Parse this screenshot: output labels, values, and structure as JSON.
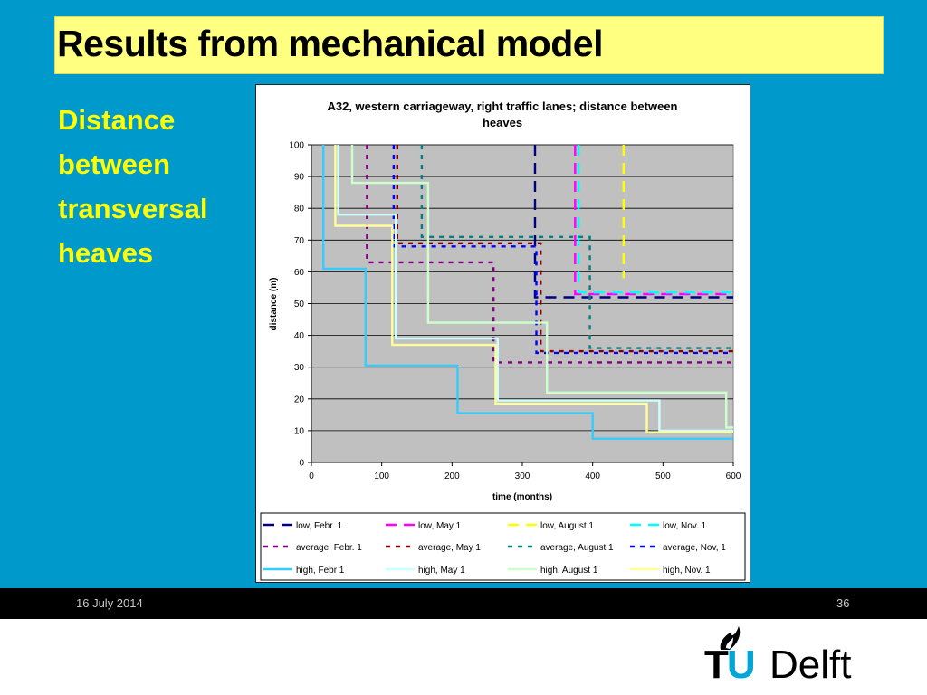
{
  "slide": {
    "title": "Results from mechanical model",
    "side_lines": [
      "Distance",
      "between",
      "transversal",
      "heaves"
    ],
    "footer_date": "16 July 2014",
    "page_number": "36",
    "logo_tu_t": "T",
    "logo_tu_u": "U",
    "logo_delft": "Delft"
  },
  "chart_data": {
    "type": "line",
    "title_lines": [
      "A32, western carriageway, right traffic lanes; distance between",
      "heaves"
    ],
    "xlabel": "time (months)",
    "ylabel": "distance (m)",
    "xlim": [
      0,
      600
    ],
    "ylim": [
      0,
      100
    ],
    "xticks": [
      0,
      100,
      200,
      300,
      400,
      500,
      600
    ],
    "yticks": [
      0,
      10,
      20,
      30,
      40,
      50,
      60,
      70,
      80,
      90,
      100
    ],
    "grid": true,
    "plot_background": "#c0c0c0",
    "legend_position": "bottom",
    "series": [
      {
        "name": "low, Febr. 1",
        "color": "#000080",
        "dash": "long",
        "points": [
          [
            318,
            100
          ],
          [
            318,
            52
          ],
          [
            600,
            52
          ]
        ]
      },
      {
        "name": "low, May 1",
        "color": "#ff00ff",
        "dash": "long",
        "points": [
          [
            375,
            100
          ],
          [
            375,
            53
          ],
          [
            600,
            53
          ]
        ]
      },
      {
        "name": "low, August 1",
        "color": "#ffff00",
        "dash": "long",
        "points": [
          [
            444,
            100
          ],
          [
            444,
            58
          ]
        ]
      },
      {
        "name": "low, Nov. 1",
        "color": "#00ffff",
        "dash": "long",
        "points": [
          [
            380,
            100
          ],
          [
            380,
            53.5
          ],
          [
            600,
            53.5
          ]
        ]
      },
      {
        "name": "average, Febr. 1",
        "color": "#800080",
        "dash": "short",
        "points": [
          [
            79,
            100
          ],
          [
            79,
            63
          ],
          [
            259,
            63
          ],
          [
            259,
            31.5
          ],
          [
            600,
            31.5
          ]
        ]
      },
      {
        "name": "average, May 1",
        "color": "#800000",
        "dash": "short",
        "points": [
          [
            122,
            100
          ],
          [
            122,
            69
          ],
          [
            326,
            69
          ],
          [
            326,
            35
          ],
          [
            600,
            35
          ]
        ]
      },
      {
        "name": "average, August 1",
        "color": "#008080",
        "dash": "short",
        "points": [
          [
            157,
            100
          ],
          [
            157,
            71
          ],
          [
            396,
            71
          ],
          [
            396,
            36
          ],
          [
            600,
            36
          ]
        ]
      },
      {
        "name": "average, Nov, 1",
        "color": "#0000ff",
        "dash": "short",
        "points": [
          [
            117,
            100
          ],
          [
            117,
            68
          ],
          [
            320,
            68
          ],
          [
            320,
            34.5
          ],
          [
            600,
            34.5
          ]
        ]
      },
      {
        "name": "high, Febr 1",
        "color": "#33ccff",
        "dash": "solid",
        "points": [
          [
            17,
            100
          ],
          [
            17,
            61
          ],
          [
            77,
            61
          ],
          [
            77,
            30.5
          ],
          [
            208,
            30.5
          ],
          [
            208,
            15.5
          ],
          [
            400,
            15.5
          ],
          [
            400,
            7.5
          ],
          [
            600,
            7.5
          ]
        ]
      },
      {
        "name": "high, May 1",
        "color": "#ccffff",
        "dash": "solid",
        "points": [
          [
            38,
            100
          ],
          [
            38,
            78
          ],
          [
            120,
            78
          ],
          [
            120,
            39
          ],
          [
            265,
            39
          ],
          [
            265,
            19.5
          ],
          [
            495,
            19.5
          ],
          [
            495,
            10
          ],
          [
            600,
            10
          ]
        ]
      },
      {
        "name": "high, August 1",
        "color": "#ccffcc",
        "dash": "solid",
        "points": [
          [
            58,
            100
          ],
          [
            58,
            88
          ],
          [
            166,
            88
          ],
          [
            166,
            44
          ],
          [
            335,
            44
          ],
          [
            335,
            22
          ],
          [
            590,
            22
          ],
          [
            590,
            11
          ],
          [
            600,
            11
          ]
        ]
      },
      {
        "name": "high, Nov. 1",
        "color": "#ffff99",
        "dash": "solid",
        "points": [
          [
            34,
            100
          ],
          [
            34,
            74.5
          ],
          [
            115,
            74.5
          ],
          [
            115,
            37
          ],
          [
            262,
            37
          ],
          [
            262,
            18.5
          ],
          [
            477,
            18.5
          ],
          [
            477,
            9.5
          ],
          [
            600,
            9.5
          ]
        ]
      }
    ]
  }
}
